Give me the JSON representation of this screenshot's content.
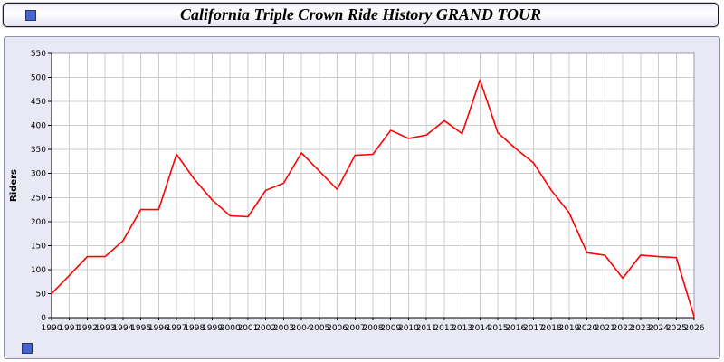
{
  "title": "California Triple Crown Ride History GRAND TOUR",
  "decorations": {
    "corner_square_color": "#4466cc"
  },
  "chart_data": {
    "type": "line",
    "title": "California Triple Crown Ride History GRAND TOUR",
    "x": [
      1990,
      1991,
      1992,
      1993,
      1994,
      1995,
      1996,
      1997,
      1998,
      1999,
      2000,
      2001,
      2002,
      2003,
      2004,
      2005,
      2006,
      2007,
      2008,
      2009,
      2010,
      2011,
      2012,
      2013,
      2014,
      2015,
      2016,
      2017,
      2018,
      2019,
      2020,
      2021,
      2022,
      2023,
      2024,
      2025,
      2026
    ],
    "series": [
      {
        "name": "Riders",
        "color": "#ff0000",
        "values": [
          50,
          88,
          127,
          127,
          160,
          225,
          225,
          340,
          288,
          245,
          212,
          210,
          265,
          280,
          343,
          305,
          267,
          338,
          340,
          390,
          373,
          380,
          410,
          383,
          495,
          385,
          352,
          322,
          265,
          218,
          135,
          130,
          82,
          130,
          127,
          125,
          2
        ]
      }
    ],
    "xlabel": "",
    "ylabel": "Riders",
    "ylim": [
      0,
      550
    ],
    "ytick_step": 50,
    "grid": true,
    "grid_color": "#cccccc",
    "plot_bg": "#ffffff",
    "panel_bg": "#e9e9f5",
    "axis_color": "#000000",
    "tick_label_color": "#000000",
    "legend": "none"
  }
}
